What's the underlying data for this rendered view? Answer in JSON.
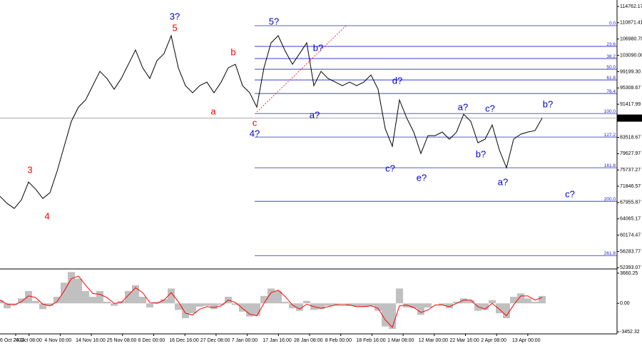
{
  "chart_data": [
    {
      "type": "line",
      "color": "#000000",
      "values": [
        69440,
        67736,
        66543,
        68588,
        72848,
        71144,
        68929,
        70292,
        75404,
        81368,
        87332,
        90740,
        92444,
        95852,
        99260,
        97556,
        95000,
        97556,
        100964,
        104372,
        100112,
        97556,
        101816,
        103520,
        107780,
        100112,
        95852,
        94148,
        95852,
        96704,
        94148,
        96704,
        100112,
        100964,
        95852,
        94148,
        90740,
        100112,
        106076,
        107780,
        104031,
        100964,
        103520,
        106076,
        95852,
        99260,
        97556,
        96704,
        95852,
        96704,
        95852,
        96704,
        98408,
        95000,
        85628,
        81368,
        92444,
        88184,
        84776,
        79664,
        83924,
        83924,
        84776,
        83072,
        84776,
        89036,
        87332,
        82220,
        83072,
        86480,
        80516,
        76256,
        83072,
        84265,
        84776,
        85117,
        88107.74
      ],
      "ylim": [
        52100,
        116300
      ],
      "yticks": [
        114762.17,
        110871.41,
        {
          "value": 106980.7,
          "label": "106980.70"
        },
        {
          "value": 103090,
          "label": "103090.00"
        },
        {
          "value": 99199.3,
          "label": "99199.30"
        },
        95308.67,
        91417.99,
        83518.67,
        79627.97,
        75737.27,
        71846.57,
        67955.87,
        64065.17,
        60174.47,
        56283.77,
        52393.07
      ],
      "current_price": 88107.74,
      "xtick_labels": [
        "6 Oct 2024",
        "24 Oct 08:00",
        "4 Nov 00:00",
        "14 Nov 16:00",
        "25 Nov 08:00",
        "6 Dec 00:00",
        "16 Dec 16:00",
        "27 Dec 08:00",
        "7 Jan 00:00",
        "17 Jan 16:00",
        "28 Jan 08:00",
        "8 Feb 00:00",
        "18 Feb 16:00",
        "1 Mar 08:00",
        "12 Mar 00:00",
        "22 Mar 16:00",
        "2 Apr 08:00",
        "13 Apr 00:00"
      ],
      "fib_color": "#2222cc",
      "fib_levels": [
        {
          "label": "0.0",
          "value": 110166
        },
        {
          "label": "23.6",
          "value": 105224
        },
        {
          "label": "38.2",
          "value": 102327
        },
        {
          "label": "50.0",
          "value": 99771
        },
        {
          "label": "61.8",
          "value": 97215
        },
        {
          "label": "76.4",
          "value": 93978
        },
        {
          "label": "100.0",
          "value": 89206
        },
        {
          "label": "127.2",
          "value": 83583
        },
        {
          "label": "161.8",
          "value": 76256
        },
        {
          "label": "200.0",
          "value": 68247
        },
        {
          "label": "261.8",
          "value": 55297
        }
      ],
      "annotations": [
        {
          "text": "3?",
          "color": "#0000cc"
        },
        {
          "text": "5",
          "color": "#ee0000"
        },
        {
          "text": "b",
          "color": "#ee0000"
        },
        {
          "text": "a",
          "color": "#ee0000"
        },
        {
          "text": "3",
          "color": "#ee0000"
        },
        {
          "text": "4",
          "color": "#ee0000"
        },
        {
          "text": "c",
          "color": "#ee0000"
        },
        {
          "text": "4?",
          "color": "#0000cc"
        },
        {
          "text": "5?",
          "color": "#0000cc"
        },
        {
          "text": "b?",
          "color": "#0000cc"
        },
        {
          "text": "a?",
          "color": "#0000cc"
        },
        {
          "text": "d?",
          "color": "#0000cc"
        },
        {
          "text": "c?",
          "color": "#0000cc"
        },
        {
          "text": "e?",
          "color": "#0000cc"
        },
        {
          "text": "b?",
          "color": "#0000cc"
        },
        {
          "text": "a?",
          "color": "#0000cc"
        },
        {
          "text": "c?",
          "color": "#0000cc"
        },
        {
          "text": "a?",
          "color": "#0000cc"
        },
        {
          "text": "b?",
          "color": "#0000cc"
        },
        {
          "text": "c?",
          "color": "#0000cc"
        }
      ]
    },
    {
      "type": "histogram-oscillator",
      "series": [
        {
          "color": "#c0c0c0",
          "values": [
            400,
            -600,
            -200,
            600,
            1500,
            300,
            -700,
            -300,
            800,
            2500,
            3800,
            3000,
            1500,
            800,
            1500,
            200,
            -300,
            300,
            1500,
            2200,
            800,
            -500,
            200,
            500,
            1800,
            -800,
            -1800,
            -1200,
            -400,
            -300,
            -700,
            -200,
            800,
            -200,
            -1000,
            -1600,
            -1500,
            900,
            1800,
            1500,
            200,
            -600,
            -900,
            300,
            -800,
            -700,
            -300,
            -200,
            -100,
            -300,
            -400,
            -400,
            -300,
            -900,
            -2800,
            -3100,
            1800,
            -500,
            -600,
            -1400,
            -500,
            0,
            -200,
            -600,
            200,
            600,
            400,
            -900,
            -800,
            400,
            -1200,
            -1800,
            800,
            1200,
            600,
            200,
            900
          ]
        },
        {
          "color": "#ff0000",
          "values": [
            400,
            -100,
            -200,
            200,
            900,
            700,
            -100,
            -300,
            200,
            1500,
            3000,
            3300,
            2200,
            1200,
            1100,
            700,
            0,
            100,
            1000,
            1900,
            1300,
            100,
            0,
            400,
            1300,
            200,
            -1200,
            -1400,
            -700,
            -400,
            -500,
            -300,
            400,
            100,
            -600,
            -1300,
            -1500,
            0,
            1300,
            1600,
            800,
            -200,
            -700,
            -100,
            -400,
            -600,
            -400,
            -200,
            -200,
            -200,
            -400,
            -400,
            -300,
            -600,
            -2000,
            -2900,
            -300,
            -200,
            -500,
            -1100,
            -800,
            -200,
            -200,
            -400,
            0,
            400,
            400,
            -400,
            -700,
            0,
            -700,
            -1500,
            -200,
            900,
            900,
            400,
            700
          ]
        }
      ],
      "ylim": [
        -3700,
        4085
      ],
      "yticks": [
        3660.25,
        {
          "value": 0,
          "label": "0.00"
        },
        -3452.32
      ]
    }
  ]
}
